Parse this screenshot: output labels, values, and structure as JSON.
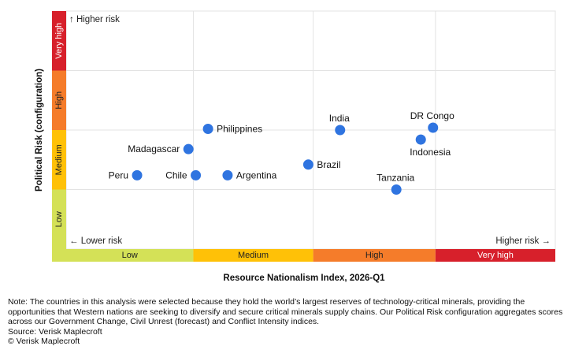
{
  "chart_data": {
    "type": "scatter",
    "xlabel": "Resource Nationalism Index, 2026-Q1",
    "ylabel": "Political Risk (configuration)",
    "xlim": [
      0,
      10
    ],
    "ylim": [
      0,
      10
    ],
    "x_bands": [
      {
        "label": "Low",
        "from": 0,
        "to": 2.6,
        "color": "#d4e157"
      },
      {
        "label": "Medium",
        "from": 2.6,
        "to": 5.05,
        "color": "#ffc107"
      },
      {
        "label": "High",
        "from": 5.05,
        "to": 7.55,
        "color": "#f57c2a"
      },
      {
        "label": "Very high",
        "from": 7.55,
        "to": 10,
        "color": "#d7202b"
      }
    ],
    "y_bands": [
      {
        "label": "Low",
        "from": 0,
        "to": 2.5,
        "color": "#d4e157"
      },
      {
        "label": "Medium",
        "from": 2.5,
        "to": 5.0,
        "color": "#ffc107"
      },
      {
        "label": "High",
        "from": 5.0,
        "to": 7.5,
        "color": "#f57c2a"
      },
      {
        "label": "Very high",
        "from": 7.5,
        "to": 10,
        "color": "#d7202b"
      }
    ],
    "points": [
      {
        "name": "Peru",
        "x": 1.45,
        "y": 3.1,
        "label_pos": "left"
      },
      {
        "name": "Chile",
        "x": 2.65,
        "y": 3.1,
        "label_pos": "left"
      },
      {
        "name": "Madagascar",
        "x": 2.5,
        "y": 4.2,
        "label_pos": "left"
      },
      {
        "name": "Argentina",
        "x": 3.3,
        "y": 3.1,
        "label_pos": "right"
      },
      {
        "name": "Philippines",
        "x": 2.9,
        "y": 5.05,
        "label_pos": "right"
      },
      {
        "name": "Brazil",
        "x": 4.95,
        "y": 3.55,
        "label_pos": "right"
      },
      {
        "name": "India",
        "x": 5.6,
        "y": 5.0,
        "label_pos": "top"
      },
      {
        "name": "DR Congo",
        "x": 7.5,
        "y": 5.1,
        "label_pos": "top"
      },
      {
        "name": "Indonesia",
        "x": 7.25,
        "y": 4.6,
        "label_pos": "bottom"
      },
      {
        "name": "Tanzania",
        "x": 6.75,
        "y": 2.5,
        "label_pos": "top"
      }
    ],
    "point_color": "#2f74e0",
    "grid": true,
    "annotations": {
      "higher_risk_y": "↑ Higher risk",
      "lower_risk_x": "← Lower risk",
      "higher_risk_x": "Higher risk →"
    }
  },
  "footer": {
    "note": "Note: The countries in this analysis were selected because they hold the world’s largest reserves of technology-critical minerals, providing the opportunities that Western nations are seeking to diversify and secure critical minerals supply chains. Our Political Risk configuration aggregates scores across our Government Change, Civil Unrest (forecast) and Conflict Intensity indices.",
    "source": "Source: Verisk Maplecroft",
    "copyright": "© Verisk Maplecroft"
  }
}
